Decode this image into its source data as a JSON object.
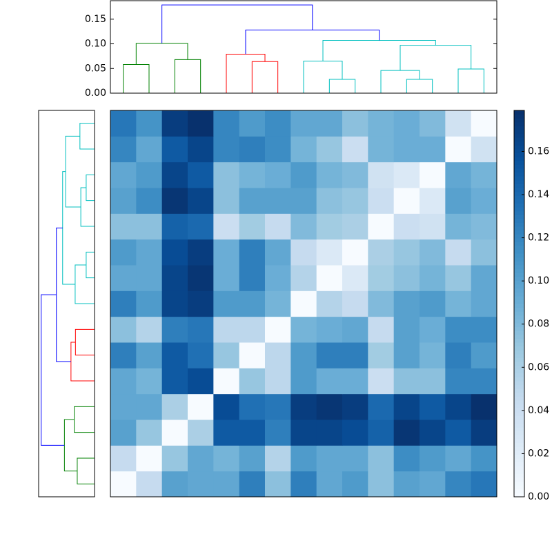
{
  "chart_data": {
    "type": "clustered-heatmap",
    "colormap": "Blues",
    "clim": [
      0,
      0.179
    ],
    "cticks": [
      {
        "value": 0,
        "label": "0.00"
      },
      {
        "value": 0.02,
        "label": "0.02"
      },
      {
        "value": 0.04,
        "label": "0.04"
      },
      {
        "value": 0.06,
        "label": "0.06"
      },
      {
        "value": 0.08,
        "label": "0.08"
      },
      {
        "value": 0.1,
        "label": "0.10"
      },
      {
        "value": 0.12,
        "label": "0.12"
      },
      {
        "value": 0.14,
        "label": "0.14"
      },
      {
        "value": 0.16,
        "label": "0.16"
      }
    ],
    "matrix": [
      [
        0,
        0.045,
        0.1,
        0.095,
        0.095,
        0.125,
        0.075,
        0.125,
        0.095,
        0.105,
        0.075,
        0.1,
        0.095,
        0.12,
        0.13
      ],
      [
        0.045,
        0,
        0.07,
        0.095,
        0.085,
        0.1,
        0.055,
        0.105,
        0.095,
        0.095,
        0.075,
        0.115,
        0.105,
        0.095,
        0.11
      ],
      [
        0.1,
        0.07,
        0,
        0.06,
        0.15,
        0.15,
        0.125,
        0.165,
        0.165,
        0.16,
        0.145,
        0.175,
        0.165,
        0.15,
        0.17
      ],
      [
        0.095,
        0.095,
        0.06,
        0,
        0.16,
        0.135,
        0.13,
        0.17,
        0.175,
        0.17,
        0.14,
        0.165,
        0.15,
        0.165,
        0.178
      ],
      [
        0.095,
        0.085,
        0.15,
        0.16,
        0,
        0.07,
        0.05,
        0.105,
        0.09,
        0.09,
        0.04,
        0.075,
        0.075,
        0.12,
        0.12
      ],
      [
        0.125,
        0.1,
        0.15,
        0.135,
        0.07,
        0,
        0.05,
        0.105,
        0.125,
        0.125,
        0.065,
        0.1,
        0.085,
        0.125,
        0.105
      ],
      [
        0.075,
        0.055,
        0.125,
        0.13,
        0.05,
        0.05,
        0,
        0.085,
        0.09,
        0.095,
        0.045,
        0.1,
        0.09,
        0.115,
        0.115
      ],
      [
        0.125,
        0.105,
        0.165,
        0.17,
        0.105,
        0.105,
        0.085,
        0,
        0.055,
        0.045,
        0.08,
        0.1,
        0.105,
        0.085,
        0.095
      ],
      [
        0.095,
        0.095,
        0.165,
        0.175,
        0.09,
        0.125,
        0.09,
        0.055,
        0,
        0.025,
        0.065,
        0.075,
        0.085,
        0.07,
        0.095
      ],
      [
        0.105,
        0.095,
        0.16,
        0.17,
        0.09,
        0.125,
        0.095,
        0.045,
        0.025,
        0,
        0.06,
        0.07,
        0.08,
        0.045,
        0.075
      ],
      [
        0.075,
        0.075,
        0.145,
        0.14,
        0.04,
        0.065,
        0.045,
        0.08,
        0.065,
        0.06,
        0,
        0.04,
        0.035,
        0.085,
        0.08
      ],
      [
        0.1,
        0.115,
        0.175,
        0.165,
        0.075,
        0.1,
        0.1,
        0.1,
        0.075,
        0.07,
        0.04,
        0,
        0.025,
        0.1,
        0.09
      ],
      [
        0.095,
        0.105,
        0.165,
        0.15,
        0.075,
        0.085,
        0.09,
        0.105,
        0.085,
        0.08,
        0.035,
        0.025,
        0,
        0.095,
        0.085
      ],
      [
        0.12,
        0.095,
        0.15,
        0.165,
        0.12,
        0.125,
        0.115,
        0.085,
        0.07,
        0.04,
        0.085,
        0.09,
        0.09,
        0,
        0.035
      ],
      [
        0.13,
        0.11,
        0.17,
        0.178,
        0.12,
        0.105,
        0.115,
        0.095,
        0.095,
        0.075,
        0.085,
        0.09,
        0.08,
        0.035,
        0
      ]
    ],
    "dendrogram": {
      "ylim": [
        0,
        0.1875
      ],
      "yticks": [
        {
          "value": 0,
          "label": "0.00"
        },
        {
          "value": 0.05,
          "label": "0.05"
        },
        {
          "value": 0.1,
          "label": "0.10"
        },
        {
          "value": 0.15,
          "label": "0.15"
        }
      ],
      "links": [
        {
          "children": [
            0,
            1
          ],
          "height": 0.058,
          "color": "#008000"
        },
        {
          "children": [
            2,
            3
          ],
          "height": 0.068,
          "color": "#008000"
        },
        {
          "children": [
            15,
            16
          ],
          "height": 0.101,
          "color": "#008000"
        },
        {
          "children": [
            5,
            6
          ],
          "height": 0.064,
          "color": "#ff0000"
        },
        {
          "children": [
            4,
            18
          ],
          "height": 0.079,
          "color": "#ff0000"
        },
        {
          "children": [
            8,
            9
          ],
          "height": 0.028,
          "color": "#00bfbf"
        },
        {
          "children": [
            7,
            20
          ],
          "height": 0.065,
          "color": "#00bfbf"
        },
        {
          "children": [
            11,
            12
          ],
          "height": 0.028,
          "color": "#00bfbf"
        },
        {
          "children": [
            10,
            22
          ],
          "height": 0.046,
          "color": "#00bfbf"
        },
        {
          "children": [
            13,
            14
          ],
          "height": 0.049,
          "color": "#00bfbf"
        },
        {
          "children": [
            23,
            24
          ],
          "height": 0.097,
          "color": "#00bfbf"
        },
        {
          "children": [
            21,
            25
          ],
          "height": 0.107,
          "color": "#00bfbf"
        },
        {
          "children": [
            19,
            26
          ],
          "height": 0.128,
          "color": "#0000ff"
        },
        {
          "children": [
            17,
            27
          ],
          "height": 0.179,
          "color": "#0000ff"
        }
      ]
    }
  }
}
